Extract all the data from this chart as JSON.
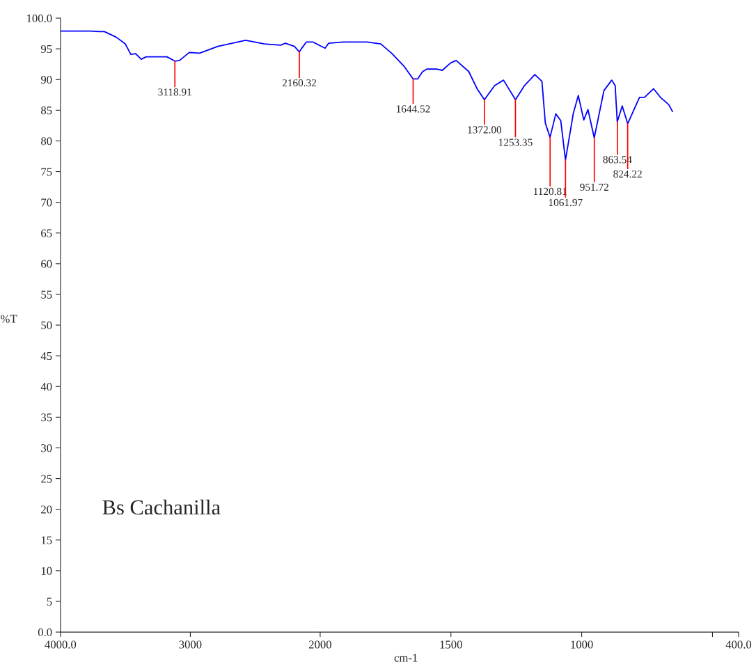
{
  "chart_data": [
    {
      "type": "line",
      "ylabel": "%T",
      "xlim": [
        4000,
        2000
      ],
      "xticks": [
        {
          "value": 4000,
          "label": "4000.0"
        },
        3000
      ],
      "ylim": [
        0,
        100
      ],
      "yticks": [
        {
          "value": 0,
          "label": "0.0"
        },
        5,
        10,
        15,
        20,
        25,
        30,
        35,
        40,
        45,
        50,
        55,
        60,
        65,
        70,
        75,
        80,
        85,
        90,
        95,
        {
          "value": 100,
          "label": "100.0"
        }
      ],
      "grid": false,
      "marker": "none",
      "line_style": "solid",
      "series": [
        {
          "color": "#0000ff",
          "x": [
            4000,
            3769,
            3700,
            3662,
            3571,
            3501,
            3458,
            3421,
            3378,
            3340,
            3180,
            3119,
            3083,
            3008,
            2928,
            2788,
            2574,
            2429,
            2306,
            2268,
            2198,
            2160,
            2145,
            2107,
            2054,
            2000
          ],
          "values": [
            97.9,
            97.9,
            97.8,
            97.8,
            96.9,
            95.8,
            94.1,
            94.2,
            93.3,
            93.7,
            93.7,
            93.0,
            93.1,
            94.4,
            94.3,
            95.4,
            96.4,
            95.8,
            95.6,
            95.9,
            95.4,
            94.5,
            95.0,
            96.1,
            96.1,
            95.5
          ]
        }
      ],
      "annotations": [
        {
          "text": "3118.91",
          "x": 3118.91,
          "y": 93.0
        },
        {
          "text": "2160.32",
          "x": 2160.32,
          "y": 94.5
        },
        "Bs Cachanilla"
      ]
    },
    {
      "type": "line",
      "xlabel": "cm-1",
      "tick_labels": "x",
      "xlim": [
        2000,
        400
      ],
      "xticks": [
        2000,
        1500,
        1000,
        {
          "value": 500,
          "label": null
        },
        {
          "value": 400,
          "label": "400.0"
        }
      ],
      "ylim": [
        0,
        100
      ],
      "grid": false,
      "marker": "none",
      "line_style": "solid",
      "series": [
        {
          "color": "#0000ff",
          "x": [
            2000,
            1981,
            1968,
            1912,
            1821,
            1768,
            1725,
            1680,
            1645,
            1627,
            1608,
            1592,
            1555,
            1533,
            1501,
            1480,
            1432,
            1400,
            1372,
            1333,
            1299,
            1253,
            1219,
            1179,
            1152,
            1139,
            1121,
            1099,
            1080,
            1062,
            1032,
            1013,
            992,
            976,
            952,
            915,
            885,
            872,
            864,
            845,
            824,
            779,
            760,
            725,
            699,
            667,
            653
          ],
          "values": [
            95.5,
            95.1,
            95.9,
            96.1,
            96.1,
            95.8,
            94.2,
            92.2,
            90.1,
            90.1,
            91.3,
            91.7,
            91.7,
            91.5,
            92.7,
            93.1,
            91.3,
            88.5,
            86.7,
            89.0,
            89.9,
            86.7,
            89.0,
            90.8,
            89.7,
            82.9,
            80.6,
            84.4,
            83.3,
            76.9,
            84.5,
            87.4,
            83.4,
            85.1,
            80.5,
            88.2,
            89.9,
            89.0,
            83.1,
            85.7,
            82.8,
            87.1,
            87.1,
            88.5,
            87.1,
            85.9,
            84.8
          ]
        }
      ],
      "annotations": [
        {
          "text": "1644.52",
          "x": 1644.52,
          "y": 90.1
        },
        {
          "text": "1372.00",
          "x": 1372.0,
          "y": 86.7
        },
        {
          "text": "1253.35",
          "x": 1253.35,
          "y": 86.7
        },
        {
          "text": "1120.81",
          "x": 1120.81,
          "y": 80.6
        },
        {
          "text": "1061.97",
          "x": 1061.97,
          "y": 76.9
        },
        {
          "text": "951.72",
          "x": 951.72,
          "y": 80.5
        },
        {
          "text": "863.54",
          "x": 863.54,
          "y": 83.1
        },
        {
          "text": "824.22",
          "x": 824.22,
          "y": 82.8
        }
      ]
    }
  ]
}
